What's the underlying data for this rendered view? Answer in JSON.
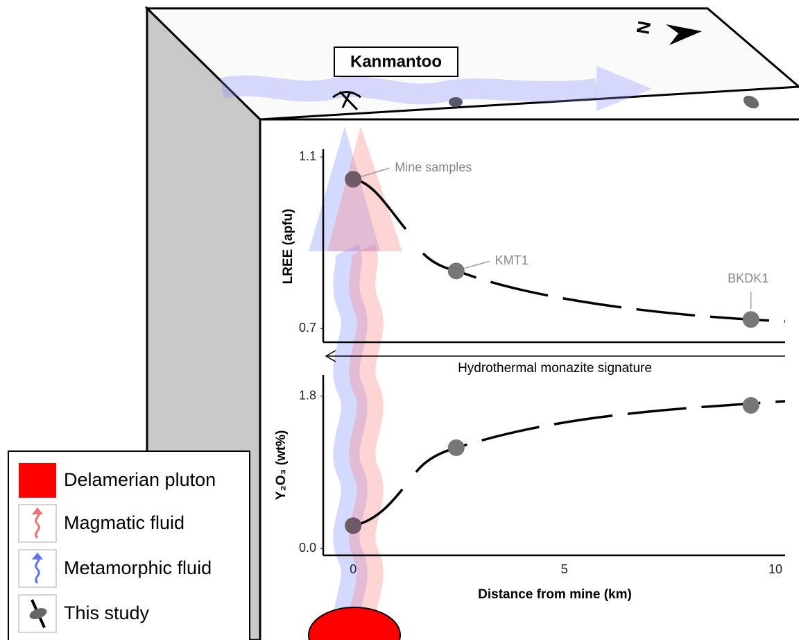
{
  "header": {
    "title": "Kanmantoo",
    "north_label": "N"
  },
  "lree_plot": {
    "y_label": "LREE (apfu)",
    "ylim": [
      0.668,
      1.118
    ],
    "yticks": [
      1.1,
      0.7
    ],
    "x": [
      0,
      2.44,
      9.42
    ],
    "values": [
      1.048,
      0.834,
      0.721
    ],
    "point_labels": [
      "Mine samples",
      "KMT1",
      "BKDK1"
    ]
  },
  "signature_label": "Hydrothermal monazite signature",
  "y2o3_plot": {
    "y_label": "Y₂O₃ (wt%)",
    "ylim": [
      -0.08,
      2.05
    ],
    "yticks": [
      1.8,
      {
        "value": 0,
        "label": "0.0"
      }
    ],
    "x": [
      0,
      2.44,
      9.42
    ],
    "values": [
      0.27,
      1.19,
      1.69
    ]
  },
  "x_axis": {
    "label": "Distance from mine (km)",
    "xlim": [
      -0.71,
      10.23
    ],
    "xticks": [
      0,
      5,
      10
    ]
  },
  "legend": {
    "items": [
      "Delamerian pluton",
      "Magmatic fluid",
      "Metamorphic fluid",
      "This study"
    ]
  }
}
